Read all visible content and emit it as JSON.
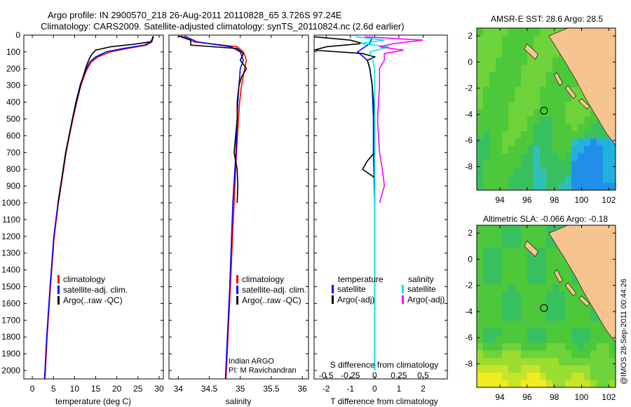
{
  "header": {
    "line1": "Argo profile: IN 2900570_218 26-Aug-2011 20110828_65 3.726S 97.24E",
    "line2": "Climatology: CARS2009. Satellite-adjusted climatology: synTS_20110824.nc (2.6d earlier)"
  },
  "watermark": "@IMOS 28-Sep-2011 00:44:26",
  "colors": {
    "climatology": "#ff0000",
    "satellite": "#0000ff",
    "argo": "#000000",
    "sal_satellite": "#00e5e5",
    "sal_argo": "#ff00ff",
    "land": "#f5c490"
  },
  "chart_data": [
    {
      "id": "temperature",
      "type": "line",
      "xlabel": "temperature (deg C)",
      "xlim": [
        -2,
        31
      ],
      "ylim": [
        2050,
        0
      ],
      "xticks": [
        0,
        5,
        10,
        15,
        20,
        25,
        30
      ],
      "yticks": [
        0,
        100,
        200,
        300,
        400,
        500,
        600,
        700,
        800,
        900,
        1000,
        1100,
        1200,
        1300,
        1400,
        1500,
        1600,
        1700,
        1800,
        1900,
        2000
      ],
      "legend": [
        "climatology",
        "satellite-adj. clim.",
        "Argo(..raw -QC)"
      ],
      "series": [
        {
          "name": "climatology",
          "color": "#ff0000",
          "depth": [
            10,
            40,
            60,
            80,
            100,
            130,
            160,
            200,
            250,
            300,
            400,
            500,
            600,
            700,
            800,
            1000,
            1200,
            1500,
            1800,
            2050
          ],
          "values": [
            28.6,
            28.3,
            27.0,
            22.5,
            18.5,
            15.5,
            14.0,
            13.0,
            12.2,
            11.5,
            10.5,
            9.6,
            8.8,
            8.0,
            7.4,
            6.2,
            5.2,
            4.3,
            3.5,
            3.0
          ]
        },
        {
          "name": "satellite-adj. clim.",
          "color": "#0000ff",
          "depth": [
            10,
            40,
            60,
            80,
            100,
            130,
            160,
            200,
            250,
            300,
            400,
            500,
            600,
            700,
            800,
            1000,
            1200,
            1500,
            1800,
            2050
          ],
          "values": [
            28.5,
            28.2,
            26.5,
            21.5,
            17.5,
            15.0,
            13.6,
            12.8,
            12.0,
            11.3,
            10.3,
            9.5,
            8.7,
            7.9,
            7.3,
            6.1,
            5.1,
            4.2,
            3.4,
            2.9
          ]
        },
        {
          "name": "Argo(..raw -QC)",
          "color": "#000000",
          "depth": [
            5,
            20,
            40,
            55,
            70,
            90,
            110,
            140,
            170,
            200,
            250,
            300,
            400,
            500,
            600,
            700,
            800,
            1000
          ],
          "values": [
            28.6,
            28.5,
            28.0,
            24.0,
            18.5,
            15.0,
            14.2,
            13.5,
            13.0,
            12.6,
            12.0,
            11.4,
            10.4,
            9.5,
            8.7,
            7.9,
            7.3,
            6.1
          ]
        }
      ]
    },
    {
      "id": "salinity",
      "type": "line",
      "xlabel": "salinity",
      "xlim": [
        33.85,
        36.1
      ],
      "ylim": [
        2050,
        0
      ],
      "xticks": [
        34,
        34.5,
        35,
        35.5,
        36
      ],
      "legend": [
        "climatology",
        "satellite-adj. clim.",
        "Argo(..raw -QC)"
      ],
      "annotation": [
        "Indian ARGO",
        "PI: M Ravichandran"
      ],
      "series": [
        {
          "name": "climatology",
          "color": "#ff0000",
          "depth": [
            5,
            40,
            70,
            100,
            150,
            200,
            300,
            400,
            500,
            700,
            1000,
            1500,
            2050
          ],
          "values": [
            34.05,
            34.25,
            34.95,
            35.05,
            35.1,
            35.07,
            35.02,
            34.99,
            34.97,
            34.94,
            34.9,
            34.84,
            34.77
          ]
        },
        {
          "name": "satellite-adj. clim.",
          "color": "#0000ff",
          "depth": [
            5,
            40,
            70,
            100,
            150,
            200,
            300,
            400,
            500,
            700,
            1000,
            1500,
            2050
          ],
          "values": [
            34.1,
            34.3,
            34.85,
            35.0,
            35.05,
            35.0,
            34.98,
            34.96,
            34.95,
            34.93,
            34.88,
            34.83,
            34.76
          ]
        },
        {
          "name": "Argo(..raw -QC)",
          "color": "#000000",
          "depth": [
            5,
            30,
            60,
            80,
            110,
            150,
            200,
            250,
            300,
            400,
            500,
            700,
            800,
            900,
            1000
          ],
          "values": [
            34.0,
            34.2,
            34.2,
            34.95,
            35.05,
            35.0,
            35.1,
            35.02,
            34.98,
            34.95,
            34.95,
            34.9,
            34.95,
            34.96,
            34.95
          ]
        }
      ]
    },
    {
      "id": "difference",
      "type": "line",
      "xlabel": "T difference from climatology",
      "xlabel_top": "S difference from climatology",
      "xlim": [
        -2.5,
        3.0
      ],
      "xticks": [
        -2,
        -1,
        0,
        1,
        2
      ],
      "xticks_top": [
        -0.5,
        -0.25,
        0,
        0.25,
        0.5
      ],
      "ylim": [
        2050,
        0
      ],
      "legend_t": {
        "title": "temperature",
        "items": [
          "satellite",
          "Argo(-adj)"
        ]
      },
      "legend_s": {
        "title": "salinity",
        "items": [
          "satellite",
          "Argo(-adj)"
        ]
      },
      "series": [
        {
          "name": "temperature satellite",
          "color": "#0000ff",
          "depth": [
            10,
            50,
            80,
            100,
            150,
            200,
            250,
            300,
            500,
            700,
            1000,
            1500,
            2000
          ],
          "values": [
            -0.1,
            -0.2,
            -0.5,
            -0.7,
            -0.3,
            -0.2,
            -0.15,
            -0.1,
            -0.05,
            -0.05,
            0,
            0,
            0
          ]
        },
        {
          "name": "temperature Argo(-adj)",
          "color": "#000000",
          "depth": [
            10,
            30,
            50,
            70,
            90,
            110,
            130,
            150,
            200,
            300,
            500,
            700,
            750,
            800,
            850,
            900,
            1000
          ],
          "values": [
            -2.5,
            -1.0,
            -0.5,
            -2.0,
            -2.5,
            -0.5,
            0.0,
            -0.3,
            -0.2,
            -0.1,
            0.0,
            0.0,
            -0.3,
            -0.5,
            0.0,
            0.0,
            0.0
          ]
        },
        {
          "name": "salinity satellite",
          "color": "#00e5e5",
          "depth": [
            10,
            30,
            50,
            70,
            100,
            150,
            200,
            300,
            500,
            700,
            1000,
            1500,
            2000
          ],
          "values": [
            -0.2,
            0.1,
            -0.15,
            0.15,
            -0.05,
            -0.02,
            0.0,
            0.0,
            0.0,
            0.0,
            0.0,
            0.0,
            0.0
          ]
        },
        {
          "name": "salinity Argo(-adj)",
          "color": "#ff00ff",
          "depth": [
            10,
            30,
            50,
            70,
            90,
            110,
            150,
            200,
            300,
            500,
            700,
            800,
            900,
            1000
          ],
          "values": [
            -0.1,
            0.5,
            0.2,
            0.05,
            0.3,
            0.1,
            0.1,
            0.05,
            0.05,
            0.03,
            0.05,
            0.08,
            0.1,
            0.05
          ]
        }
      ]
    }
  ],
  "maps": [
    {
      "id": "sst",
      "title": "AMSR-E SST: 28.6 Argo: 28.5",
      "xticks": [
        94,
        96,
        98,
        100,
        102
      ],
      "yticks": [
        2,
        0,
        -2,
        -4,
        -6,
        -8
      ],
      "xlim": [
        92.3,
        102.5
      ],
      "ylim": [
        -9.8,
        2.6
      ],
      "argo_pos": [
        97.24,
        -3.726
      ]
    },
    {
      "id": "sla",
      "title": "Altimetric SLA: -0.066 Argo: -0.18",
      "xticks": [
        94,
        96,
        98,
        100,
        102
      ],
      "yticks": [
        2,
        0,
        -2,
        -4,
        -6,
        -8
      ],
      "xlim": [
        92.3,
        102.5
      ],
      "ylim": [
        -9.8,
        2.6
      ],
      "argo_pos": [
        97.24,
        -3.726
      ]
    }
  ]
}
